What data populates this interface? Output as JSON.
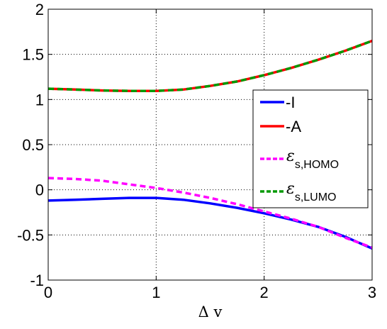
{
  "chart_data": {
    "type": "line",
    "xlabel": "Δ v",
    "ylabel": "",
    "xlim": [
      0,
      3
    ],
    "ylim": [
      -1,
      2
    ],
    "x_ticks": [
      "0",
      "1",
      "2",
      "3"
    ],
    "y_ticks": [
      "-1",
      "-0.5",
      "0",
      "0.5",
      "1",
      "1.5",
      "2"
    ],
    "grid": true,
    "grid_style": "dotted",
    "legend_position": "right",
    "series": [
      {
        "name": "-I",
        "color": "#0000ff",
        "style": "solid",
        "x": [
          0,
          0.25,
          0.5,
          0.75,
          1.0,
          1.25,
          1.5,
          1.75,
          2.0,
          2.25,
          2.5,
          2.75,
          3.0
        ],
        "y": [
          -0.12,
          -0.11,
          -0.1,
          -0.09,
          -0.09,
          -0.11,
          -0.15,
          -0.2,
          -0.26,
          -0.33,
          -0.41,
          -0.52,
          -0.65
        ]
      },
      {
        "name": "-A",
        "color": "#ff0000",
        "style": "solid",
        "x": [
          0,
          0.25,
          0.5,
          0.75,
          1.0,
          1.25,
          1.5,
          1.75,
          2.0,
          2.25,
          2.5,
          2.75,
          3.0
        ],
        "y": [
          1.12,
          1.11,
          1.1,
          1.095,
          1.095,
          1.11,
          1.15,
          1.2,
          1.27,
          1.35,
          1.44,
          1.54,
          1.65
        ]
      },
      {
        "name_main": "ε",
        "name_sub": "s,HOMO",
        "color": "#ff00ff",
        "style": "dashed",
        "x": [
          0,
          0.25,
          0.5,
          0.75,
          1.0,
          1.25,
          1.5,
          1.75,
          2.0,
          2.25,
          2.5,
          2.75,
          3.0
        ],
        "y": [
          0.13,
          0.12,
          0.1,
          0.06,
          0.02,
          -0.03,
          -0.09,
          -0.16,
          -0.24,
          -0.32,
          -0.41,
          -0.53,
          -0.64
        ]
      },
      {
        "name_main": "ε",
        "name_sub": "s,LUMO",
        "color": "#009900",
        "style": "dashed",
        "x": [
          0,
          0.25,
          0.5,
          0.75,
          1.0,
          1.25,
          1.5,
          1.75,
          2.0,
          2.25,
          2.5,
          2.75,
          3.0
        ],
        "y": [
          1.12,
          1.11,
          1.1,
          1.095,
          1.095,
          1.11,
          1.15,
          1.2,
          1.27,
          1.35,
          1.44,
          1.54,
          1.65
        ]
      }
    ]
  }
}
